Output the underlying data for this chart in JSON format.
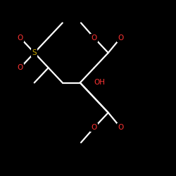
{
  "background": "#000000",
  "bond_color": "#ffffff",
  "atom_colors": {
    "O": "#ff3333",
    "S": "#ccaa00",
    "C": "#ffffff",
    "H": "#ffffff"
  },
  "figsize": [
    2.5,
    2.5
  ],
  "dpi": 100,
  "font_size": 7.5,
  "lw": 1.6
}
